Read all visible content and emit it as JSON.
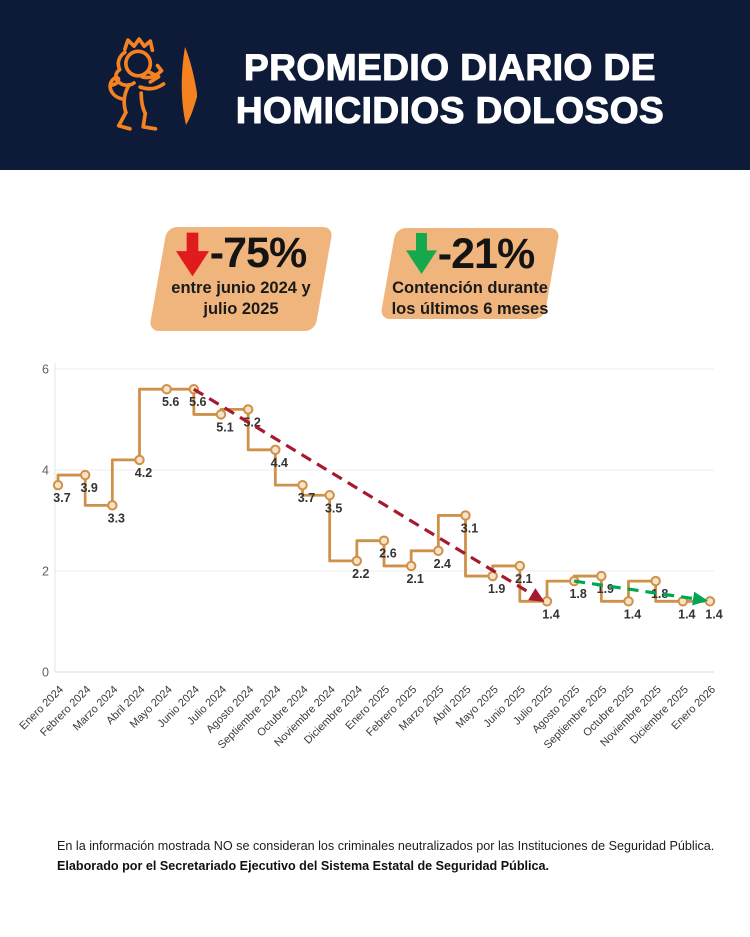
{
  "header": {
    "title_line1": "PROMEDIO DIARIO DE",
    "title_line2": "HOMICIDIOS DOLOSOS",
    "logo": "lion-crest-icon",
    "accent_color": "#f58220",
    "bg_color": "#0e1b38"
  },
  "badges": [
    {
      "arrow_icon": "red-down-arrow",
      "arrow_color": "#e01b1e",
      "percent": "-75%",
      "line1": "entre junio 2024 y",
      "line2": "julio 2025",
      "bg_color": "#efb57d"
    },
    {
      "arrow_icon": "green-down-arrow",
      "arrow_color": "#16a94c",
      "percent": "-21%",
      "line1": "Contención durante",
      "line2": "los últimos 6 meses",
      "bg_color": "#efb57d"
    }
  ],
  "chart_data": {
    "type": "line",
    "line_shape": "step-vh",
    "title": "Promedio diario de homicidios dolosos",
    "xlabel": "",
    "ylabel": "",
    "x": [
      "Enero 2024",
      "Febrero 2024",
      "Marzo 2024",
      "Abril 2024",
      "Mayo 2024",
      "Junio 2024",
      "Julio 2024",
      "Agosto 2024",
      "Septiembre 2024",
      "Octubre 2024",
      "Noviembre 2024",
      "Diciembre 2024",
      "Enero 2025",
      "Febrero 2025",
      "Marzo 2025",
      "Abril 2025",
      "Mayo 2025",
      "Junio 2025",
      "Julio 2025",
      "Agosto 2025",
      "Septiembre 2025",
      "Octubre 2025",
      "Noviembre 2025",
      "Diciembre 2025",
      "Enero 2026"
    ],
    "values": [
      3.7,
      3.9,
      3.3,
      4.2,
      5.6,
      5.6,
      5.1,
      5.2,
      4.4,
      3.7,
      3.5,
      2.2,
      2.6,
      2.1,
      2.4,
      3.1,
      1.9,
      2.1,
      1.4,
      1.8,
      1.9,
      1.4,
      1.8,
      1.4,
      1.4
    ],
    "ylim": [
      0,
      6
    ],
    "yticks": [
      0,
      2,
      4,
      6
    ],
    "grid": true,
    "legend": false,
    "line_color": "#cf9049",
    "marker_fill": "#f6e3c8",
    "label_color": "#333333",
    "trend_lines": [
      {
        "name": "descenso -75%",
        "from_month": "Junio 2024",
        "to_month": "Julio 2025",
        "from_index": 5,
        "to_index": 18,
        "from_value": 5.6,
        "to_value": 1.4,
        "color": "#a6192e",
        "style": "dashed",
        "arrow": true
      },
      {
        "name": "contención -21%",
        "from_month": "Agosto 2025",
        "to_month": "Enero 2026",
        "from_index": 19,
        "to_index": 24,
        "from_value": 1.8,
        "to_value": 1.4,
        "color": "#00a651",
        "style": "dashed",
        "arrow": true
      }
    ]
  },
  "footer": {
    "line1": "En la información mostrada NO se consideran los criminales neutralizados por las Instituciones de Seguridad Pública.",
    "line2": "Elaborado por el Secretariado Ejecutivo del Sistema Estatal de Seguridad Pública."
  }
}
